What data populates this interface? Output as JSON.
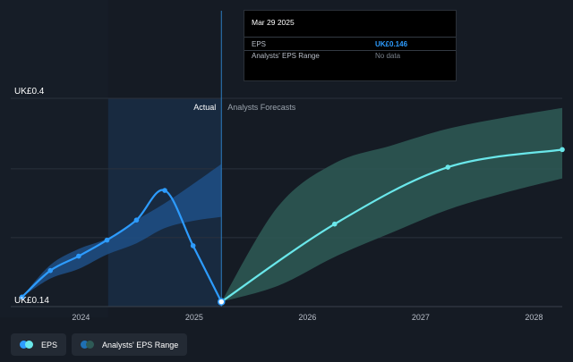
{
  "tooltip": {
    "date": "Mar 29 2025",
    "eps_label": "EPS",
    "eps_value": "UK£0.146",
    "range_label": "Analysts' EPS Range",
    "range_value": "No data"
  },
  "legend": {
    "eps_label": "EPS",
    "range_label": "Analysts' EPS Range"
  },
  "colors": {
    "background": "#151b24",
    "eps_line": "#2d9cff",
    "forecast_line": "#6ae7ea",
    "forecast_band": "#2e5a56",
    "actual_band": "#1f4f86"
  },
  "chart_data": {
    "type": "line",
    "title": "",
    "xlabel": "",
    "ylabel": "",
    "y_top_label": "UK£0.4",
    "y_bottom_label": "UK£0.14",
    "ylim": [
      0.14,
      0.4
    ],
    "xlim": [
      2023.38,
      2028.25
    ],
    "x_ticks": [
      2024,
      2025,
      2026,
      2027,
      2028
    ],
    "x_tick_labels": [
      "2024",
      "2025",
      "2026",
      "2027",
      "2028"
    ],
    "section_labels": {
      "actual": "Actual",
      "forecast": "Analysts Forecasts"
    },
    "divider_x": 2025.24,
    "highlight_start_x": 2024.24,
    "series": [
      {
        "name": "EPS",
        "x": [
          2023.48,
          2023.73,
          2023.98,
          2024.23,
          2024.49,
          2024.74,
          2024.99,
          2025.24
        ],
        "values": [
          0.152,
          0.185,
          0.203,
          0.223,
          0.248,
          0.285,
          0.216,
          0.146
        ]
      },
      {
        "name": "EPS Forecast",
        "x": [
          2025.24,
          2026.24,
          2027.24,
          2028.25
        ],
        "values": [
          0.146,
          0.243,
          0.314,
          0.336
        ]
      }
    ],
    "actual_range": {
      "x": [
        2023.48,
        2023.73,
        2023.98,
        2024.23,
        2024.49,
        2024.74,
        2024.99,
        2025.24
      ],
      "low": [
        0.152,
        0.175,
        0.187,
        0.205,
        0.219,
        0.238,
        0.247,
        0.252
      ],
      "high": [
        0.152,
        0.192,
        0.212,
        0.225,
        0.248,
        0.269,
        0.293,
        0.318
      ]
    },
    "forecast_range": {
      "x": [
        2025.24,
        2025.74,
        2026.24,
        2026.74,
        2027.24,
        2027.74,
        2028.25
      ],
      "low": [
        0.146,
        0.166,
        0.202,
        0.232,
        0.261,
        0.282,
        0.3
      ],
      "high": [
        0.146,
        0.265,
        0.319,
        0.341,
        0.362,
        0.376,
        0.388
      ]
    }
  }
}
